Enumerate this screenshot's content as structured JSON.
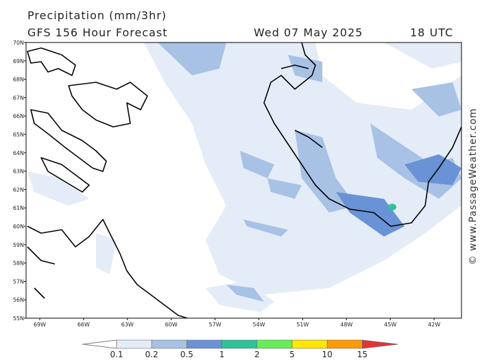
{
  "header": {
    "title": "Precipitation (mm/3hr)",
    "subtitle": "GFS 156 Hour Forecast",
    "date": "Wed 07 May 2025",
    "time": "18 UTC"
  },
  "map": {
    "lat_labels": [
      "70N",
      "69N",
      "68N",
      "67N",
      "66N",
      "65N",
      "64N",
      "63N",
      "62N",
      "61N",
      "60N",
      "59N",
      "58N",
      "57N",
      "56N",
      "55N"
    ],
    "lon_labels": [
      "69W",
      "66W",
      "63W",
      "60W",
      "57W",
      "54W",
      "51W",
      "48W",
      "45W",
      "42W"
    ]
  },
  "legend": {
    "labels": [
      "0.1",
      "0.2",
      "0.5",
      "1",
      "2",
      "5",
      "10",
      "15"
    ],
    "colors": [
      "#ffffff",
      "#e4ecf8",
      "#a8c2e6",
      "#6a92d6",
      "#2fc39a",
      "#66ee55",
      "#ffe800",
      "#ff9a00",
      "#e83232"
    ]
  },
  "watermark": "© www.PassageWeather.com"
}
